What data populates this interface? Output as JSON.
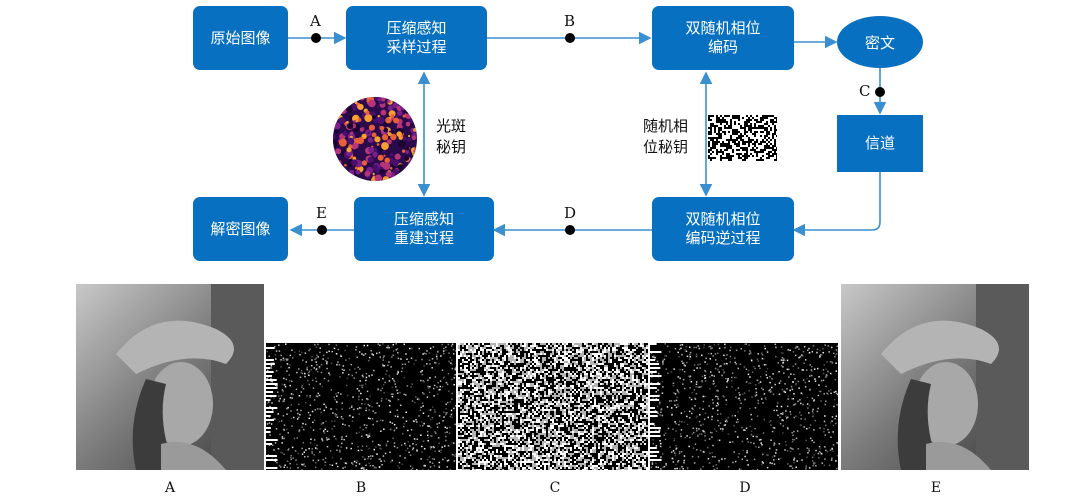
{
  "nodes": {
    "original_image": "原始图像",
    "cs_sampling": [
      "压缩感知",
      "采样过程"
    ],
    "drpe_encode": [
      "双随机相位",
      "编码"
    ],
    "ciphertext": "密文",
    "channel": "信道",
    "drpe_decode": [
      "双随机相位",
      "编码逆过程"
    ],
    "cs_reconstruct": [
      "压缩感知",
      "重建过程"
    ],
    "decrypted_image": "解密图像"
  },
  "keys": {
    "speckle_key": [
      "光斑",
      "秘钥"
    ],
    "phase_key": [
      "随机相",
      "位秘钥"
    ]
  },
  "points": {
    "a": "A",
    "b": "B",
    "c": "C",
    "d": "D",
    "e": "E"
  },
  "panels": [
    "A",
    "B",
    "C",
    "D",
    "E"
  ],
  "colors": {
    "node": "#0870c0",
    "line": "#3a8fd0",
    "dot": "#000000"
  }
}
